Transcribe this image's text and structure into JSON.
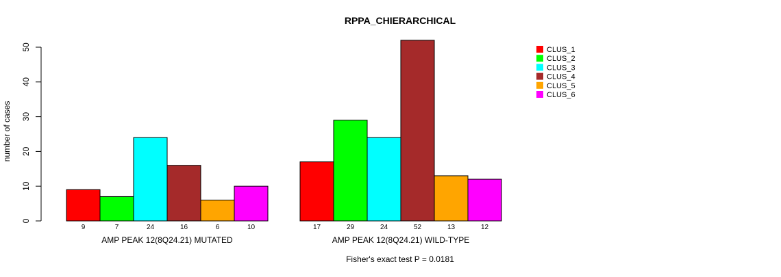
{
  "chart_data": {
    "type": "bar",
    "title": "RPPA_CHIERARCHICAL",
    "xlabel": "",
    "ylabel": "number of cases",
    "ylim": [
      0,
      50
    ],
    "yticks": [
      0,
      10,
      20,
      30,
      40,
      50
    ],
    "groups": [
      "AMP PEAK 12(8Q24.21) MUTATED",
      "AMP PEAK 12(8Q24.21) WILD-TYPE"
    ],
    "series": [
      {
        "name": "CLUS_1",
        "color": "#ff0000",
        "values": [
          9,
          17
        ]
      },
      {
        "name": "CLUS_2",
        "color": "#00ff00",
        "values": [
          7,
          29
        ]
      },
      {
        "name": "CLUS_3",
        "color": "#00ffff",
        "values": [
          24,
          24
        ]
      },
      {
        "name": "CLUS_4",
        "color": "#a52a2a",
        "values": [
          16,
          52
        ]
      },
      {
        "name": "CLUS_5",
        "color": "#ffa500",
        "values": [
          6,
          13
        ]
      },
      {
        "name": "CLUS_6",
        "color": "#ff00ff",
        "values": [
          10,
          12
        ]
      }
    ],
    "legend_position": "top-right",
    "footnote": "Fisher's exact test P = 0.0181"
  }
}
